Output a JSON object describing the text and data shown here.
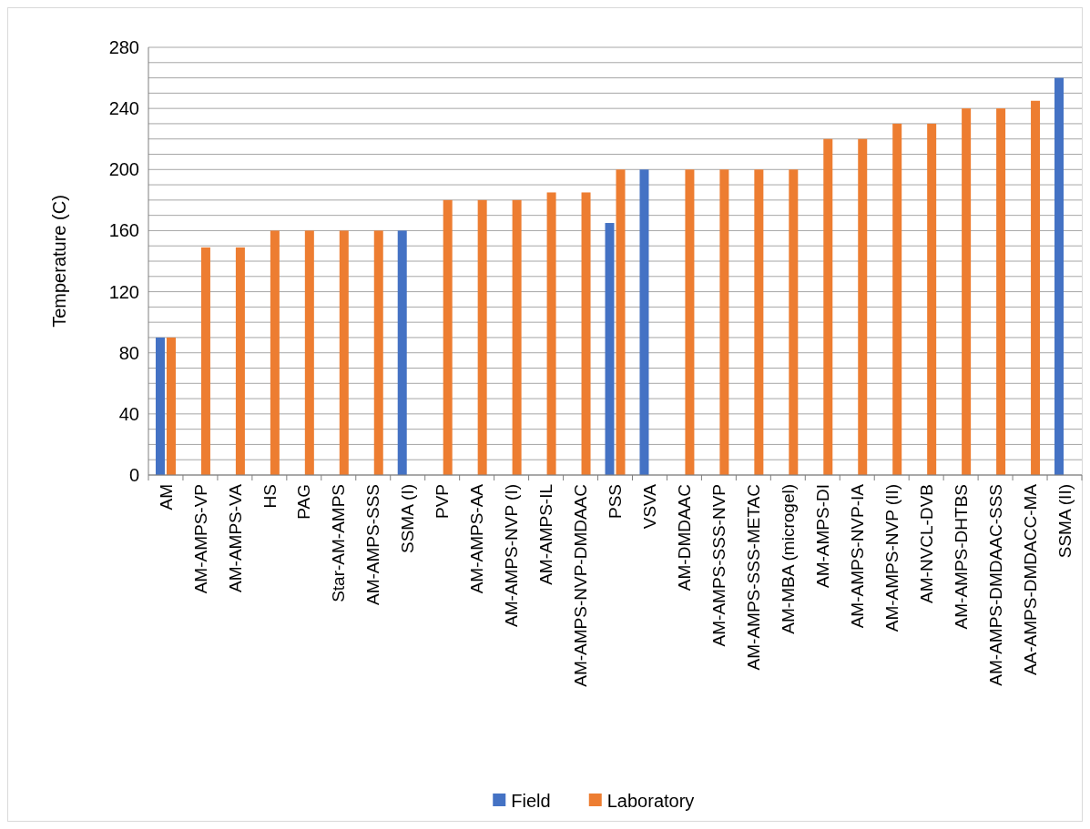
{
  "chart_data": {
    "type": "bar",
    "ylabel": "Temperature (C)",
    "categories": [
      "AM",
      "AM-AMPS-VP",
      "AM-AMPS-VA",
      "HS",
      "PAG",
      "Star-AM-AMPS",
      "AM-AMPS-SSS",
      "SSMA (I)",
      "PVP",
      "AM-AMPS-AA",
      "AM-AMPS-NVP (I)",
      "AM-AMPS-IL",
      "AM-AMPS-NVP-DMDAAC",
      "PSS",
      "VSVA",
      "AM-DMDAAC",
      "AM-AMPS-SSS-NVP",
      "AM-AMPS-SSS-METAC",
      "AM-MBA (microgel)",
      "AM-AMPS-DI",
      "AM-AMPS-NVP-IA",
      "AM-AMPS-NVP (II)",
      "AM-NVCL-DVB",
      "AM-AMPS-DHTBS",
      "AM-AMPS-DMDAAC-SSS",
      "AA-AMPS-DMDACC-MA",
      "SSMA (II)"
    ],
    "series": [
      {
        "name": "Field",
        "color": "#4472c4",
        "values": [
          90,
          null,
          null,
          null,
          null,
          null,
          null,
          160,
          null,
          null,
          null,
          null,
          null,
          165,
          200,
          null,
          null,
          null,
          null,
          null,
          null,
          null,
          null,
          null,
          null,
          null,
          260
        ]
      },
      {
        "name": "Laboratory",
        "color": "#ed7d31",
        "values": [
          90,
          149,
          149,
          160,
          160,
          160,
          160,
          null,
          180,
          180,
          180,
          185,
          185,
          200,
          null,
          200,
          200,
          200,
          200,
          220,
          220,
          230,
          230,
          240,
          240,
          245,
          null
        ]
      }
    ],
    "ylim": [
      0,
      280
    ],
    "yticks": [
      0,
      {
        "value": 10,
        "label": null
      },
      {
        "value": 20,
        "label": null
      },
      {
        "value": 30,
        "label": null
      },
      40,
      {
        "value": 50,
        "label": null
      },
      {
        "value": 60,
        "label": null
      },
      {
        "value": 70,
        "label": null
      },
      80,
      {
        "value": 90,
        "label": null
      },
      {
        "value": 100,
        "label": null
      },
      {
        "value": 110,
        "label": null
      },
      120,
      {
        "value": 130,
        "label": null
      },
      {
        "value": 140,
        "label": null
      },
      {
        "value": 150,
        "label": null
      },
      160,
      {
        "value": 170,
        "label": null
      },
      {
        "value": 180,
        "label": null
      },
      {
        "value": 190,
        "label": null
      },
      200,
      {
        "value": 210,
        "label": null
      },
      {
        "value": 220,
        "label": null
      },
      {
        "value": 230,
        "label": null
      },
      240,
      {
        "value": 250,
        "label": null
      },
      {
        "value": 260,
        "label": null
      },
      {
        "value": 270,
        "label": null
      },
      280
    ],
    "grid": "y",
    "legend": "bottom"
  }
}
